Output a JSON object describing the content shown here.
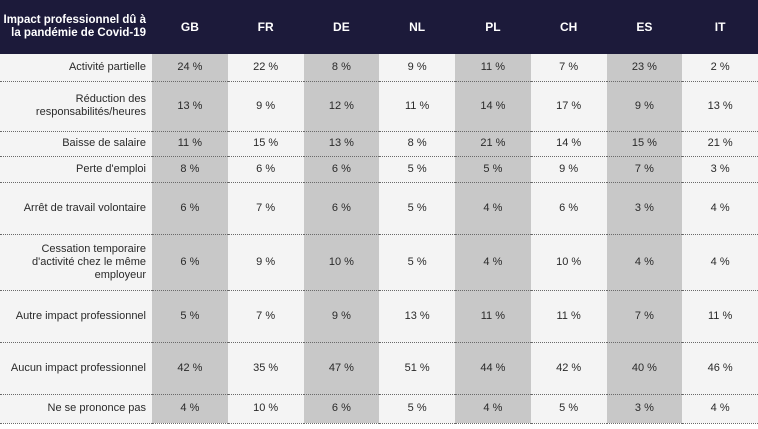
{
  "table": {
    "corner_header": "Impact professionnel dû à la pandémie de Covid-19",
    "columns": [
      "GB",
      "FR",
      "DE",
      "NL",
      "PL",
      "CH",
      "ES",
      "IT"
    ],
    "rows": [
      {
        "label": "Activité partielle",
        "values": [
          "24 %",
          "22 %",
          "8 %",
          "9 %",
          "11 %",
          "7 %",
          "23 %",
          "2 %"
        ]
      },
      {
        "label": "Réduction des responsabilités/heures",
        "values": [
          "13 %",
          "9 %",
          "12 %",
          "11 %",
          "14 %",
          "17 %",
          "9 %",
          "13 %"
        ]
      },
      {
        "label": "Baisse de salaire",
        "values": [
          "11 %",
          "15 %",
          "13 %",
          "8 %",
          "21 %",
          "14 %",
          "15 %",
          "21 %"
        ]
      },
      {
        "label": "Perte d'emploi",
        "values": [
          "8 %",
          "6 %",
          "6 %",
          "5 %",
          "5 %",
          "9 %",
          "7 %",
          "3 %"
        ]
      },
      {
        "label": "Arrêt de travail volontaire",
        "values": [
          "6 %",
          "7 %",
          "6 %",
          "5 %",
          "4 %",
          "6 %",
          "3 %",
          "4 %"
        ]
      },
      {
        "label": "Cessation temporaire d'activité chez le même employeur",
        "values": [
          "6 %",
          "9 %",
          "10 %",
          "5 %",
          "4 %",
          "10 %",
          "4 %",
          "4 %"
        ]
      },
      {
        "label": "Autre impact professionnel",
        "values": [
          "5 %",
          "7 %",
          "9 %",
          "13 %",
          "11 %",
          "11 %",
          "7 %",
          "11 %"
        ]
      },
      {
        "label": "Aucun impact professionnel",
        "values": [
          "42 %",
          "35 %",
          "47 %",
          "51 %",
          "44 %",
          "42 %",
          "40 %",
          "46 %"
        ]
      },
      {
        "label": "Ne se prononce pas",
        "values": [
          "4 %",
          "10 %",
          "6 %",
          "5 %",
          "4 %",
          "5 %",
          "3 %",
          "4 %"
        ]
      }
    ]
  },
  "colors": {
    "header_background": "#1c1a3a",
    "shaded_column": "#c8c8c8",
    "plain_column": "#f4f4f4"
  }
}
